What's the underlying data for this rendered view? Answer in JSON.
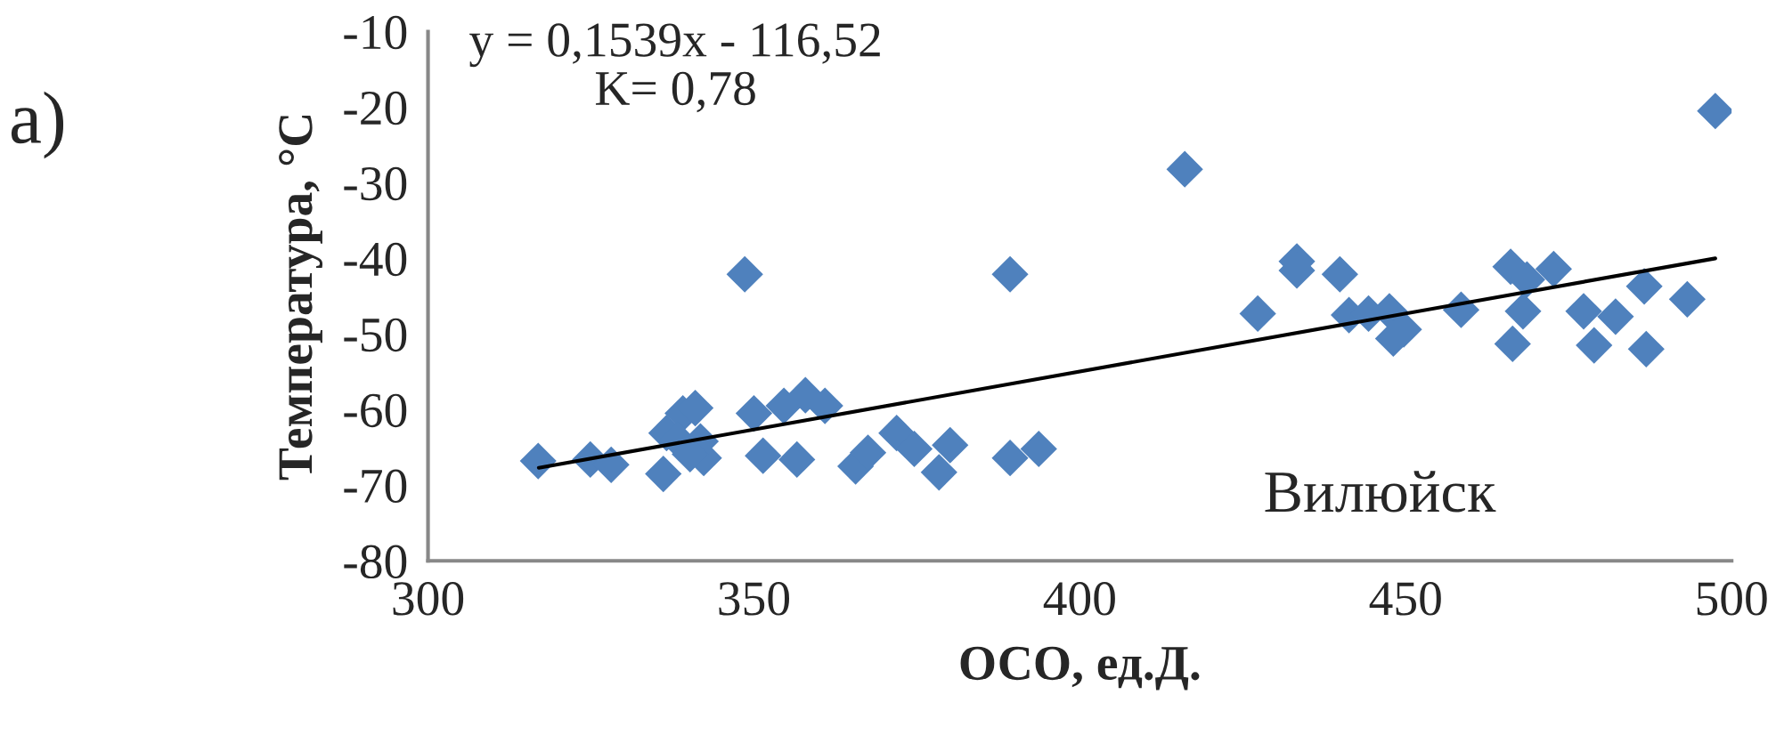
{
  "chart_data": {
    "type": "scatter",
    "xlabel": "ОСО, ед.Д.",
    "ylabel": "Температура, °C",
    "annotations": [
      "а)",
      "y = 0,1539x - 116,52\nK= 0,78",
      "Вилюйск"
    ],
    "xlim": [
      300,
      500
    ],
    "xticks": [
      300,
      350,
      400,
      450,
      500
    ],
    "ylim": [
      -80,
      -10
    ],
    "yticks": [
      -80,
      -70,
      -60,
      -50,
      -40,
      -30,
      -20,
      -10
    ],
    "grid": false,
    "legend": false,
    "series": [
      {
        "marker": "diamond",
        "color": "#4f81bd",
        "x": [
          316.9,
          324.9,
          328.1,
          336.1,
          336.6,
          339.1,
          341.0,
          338.3,
          341.8,
          342.3,
          340.2,
          350.0,
          351.4,
          354.6,
          356.6,
          357.9,
          360.9,
          365.6,
          367.5,
          371.9,
          374.6,
          378.4,
          380.1,
          389.3,
          393.7,
          348.6,
          389.3,
          416.1,
          433.3,
          433.3,
          439.9,
          427.3,
          441.3,
          444.3,
          447.5,
          448.1,
          449.7,
          458.5,
          466.1,
          468.6,
          472.7,
          468.0,
          466.4,
          477.3,
          478.9,
          482.2,
          486.6,
          486.9,
          493.2,
          497.5
        ],
        "values": [
          -66.8,
          -66.6,
          -67.3,
          -68.5,
          -63.1,
          -60.5,
          -59.8,
          -64.0,
          -64.2,
          -66.4,
          -65.9,
          -60.5,
          -66.1,
          -59.5,
          -66.6,
          -58.1,
          -59.5,
          -67.5,
          -65.7,
          -63.1,
          -65.2,
          -68.3,
          -64.7,
          -66.4,
          -65.2,
          -42.1,
          -42.1,
          -28.2,
          -40.4,
          -41.6,
          -42.1,
          -47.3,
          -47.5,
          -47.3,
          -47.0,
          -50.6,
          -49.4,
          -46.8,
          -41.1,
          -42.8,
          -41.4,
          -47.0,
          -51.3,
          -47.0,
          -51.5,
          -47.7,
          -43.7,
          -52.0,
          -45.4,
          -20.5
        ]
      },
      {
        "type": "line",
        "color": "#000000",
        "line_style": "solid",
        "x": [
          317,
          497.5
        ],
        "values": [
          -67.7,
          -40.0
        ]
      }
    ]
  }
}
